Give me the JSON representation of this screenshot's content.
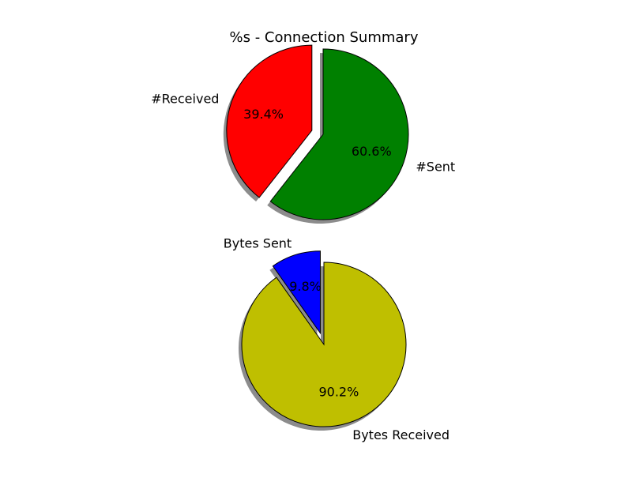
{
  "chart_data": {
    "type": "pie",
    "title": "%s - Connection Summary",
    "charts": [
      {
        "labels": [
          "#Received",
          "#Sent"
        ],
        "values": [
          39.4,
          60.6
        ],
        "percent_labels": [
          "39.4%",
          "60.6%"
        ],
        "colors": [
          "#ff0000",
          "#008000"
        ],
        "exploded": [
          true,
          false
        ],
        "shadow": true
      },
      {
        "labels": [
          "Bytes Sent",
          "Bytes Received"
        ],
        "values": [
          9.8,
          90.2
        ],
        "percent_labels": [
          "9.8%",
          "90.2%"
        ],
        "colors": [
          "#0000ff",
          "#bfbf00"
        ],
        "exploded": [
          true,
          false
        ],
        "shadow": true
      }
    ]
  }
}
